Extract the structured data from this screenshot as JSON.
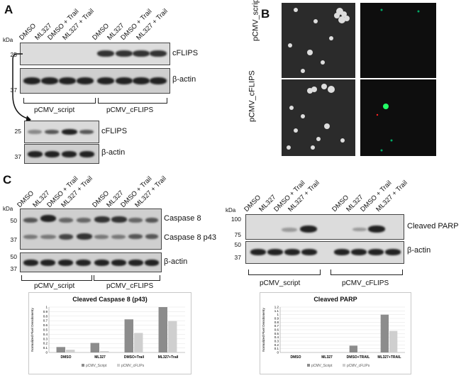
{
  "panels": {
    "A": "A",
    "B": "B",
    "C": "C"
  },
  "units": {
    "kda": "kDa"
  },
  "lanes": [
    "DMSO",
    "ML327",
    "DMSO + Trail",
    "ML327 + Trail"
  ],
  "panelA": {
    "mw_top": [
      "25",
      "37"
    ],
    "mw_bottom": [
      "25",
      "37"
    ],
    "proteins": {
      "cflip": "cFLIPS",
      "actin": "β-actin"
    },
    "groups": {
      "script": "pCMV_script",
      "cflip": "pCMV_cFLIPS"
    }
  },
  "panelB": {
    "rows": [
      "pCMV_script",
      "pCMV_cFLIPS"
    ]
  },
  "panelC_left": {
    "mw": [
      "50",
      "37",
      "50",
      "37"
    ],
    "proteins": {
      "casp8": "Caspase 8",
      "casp8p43": "Caspase 8 p43",
      "actin": "β-actin"
    },
    "groups": {
      "script": "pCMV_script",
      "cflip": "pCMV_cFLIPS"
    }
  },
  "panelC_right": {
    "mw": [
      "100",
      "75",
      "50",
      "37"
    ],
    "proteins": {
      "parp": "Cleaved PARP",
      "actin": "β-actin"
    },
    "groups": {
      "script": "pCMV_script",
      "cflip": "pCMV_cFLIPS"
    }
  },
  "chart_data": [
    {
      "type": "bar",
      "title": "Cleaved Caspase 8 (p43)",
      "ylabel": "Normalized Pixel Densitometry",
      "categories": [
        "DMSO",
        "ML327",
        "DMSO+Trail",
        "ML327+Trail"
      ],
      "ylim": [
        0,
        1
      ],
      "yticks": [
        "0",
        "0.1",
        "0.2",
        "0.3",
        "0.4",
        "0.5",
        "0.6",
        "0.7",
        "0.8",
        "0.9",
        "1"
      ],
      "series": [
        {
          "name": "pCMV_Script",
          "color": "#8c8c8c",
          "values": [
            0.12,
            0.21,
            0.73,
            1.0
          ]
        },
        {
          "name": "pCMV_cFLIPs",
          "color": "#cfcfcf",
          "values": [
            0.06,
            0.03,
            0.43,
            0.69
          ]
        }
      ],
      "legend": "bottom"
    },
    {
      "type": "bar",
      "title": "Cleaved PARP",
      "ylabel": "Normalized Pixel Densitometry",
      "categories": [
        "DMSO",
        "ML327",
        "DMSO+TRAIL",
        "ML327+TRAIL"
      ],
      "ylim": [
        0,
        1.2
      ],
      "yticks": [
        "0",
        "0.1",
        "0.2",
        "0.3",
        "0.4",
        "0.5",
        "0.6",
        "0.7",
        "0.8",
        "0.9",
        "1",
        "1.1",
        "1.2"
      ],
      "series": [
        {
          "name": "pCMV_Script",
          "color": "#8c8c8c",
          "values": [
            0.0,
            0.0,
            0.18,
            1.0
          ]
        },
        {
          "name": "pCMV_cFLIPs",
          "color": "#cfcfcf",
          "values": [
            0.0,
            0.0,
            0.02,
            0.57
          ]
        }
      ],
      "legend": "bottom"
    }
  ]
}
